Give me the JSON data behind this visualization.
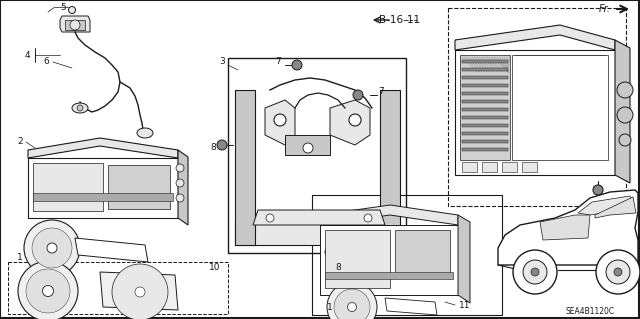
{
  "bg_color": "#f5f5f0",
  "line_color": "#1a1a1a",
  "diagram_code": "SEA4B1120C",
  "figsize": [
    6.4,
    3.19
  ],
  "dpi": 100,
  "border_color": "#333333",
  "gray_fill": "#c8c8c8",
  "light_gray": "#e8e8e8",
  "mid_gray": "#b0b0b0",
  "dark_gray": "#888888"
}
